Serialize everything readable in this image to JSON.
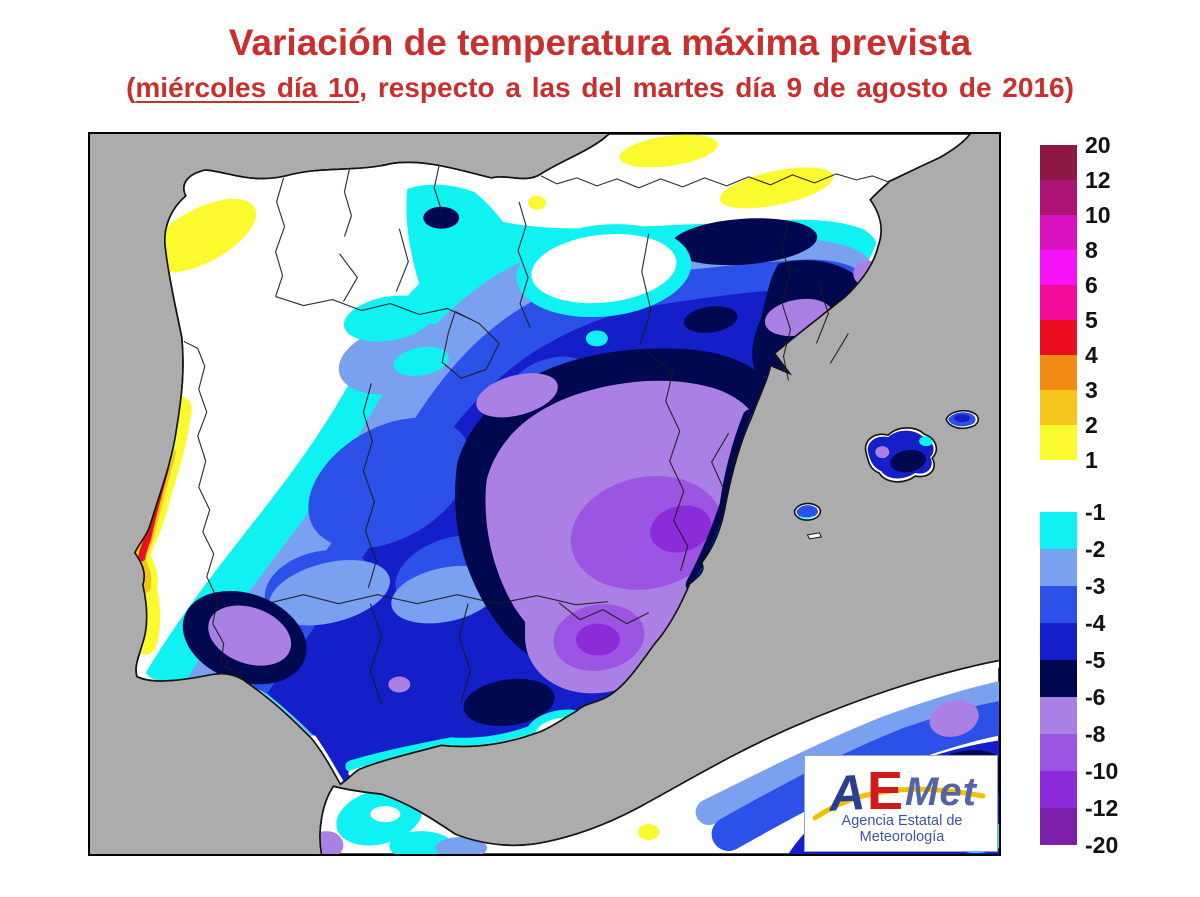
{
  "header": {
    "title": "Variación de temperatura máxima prevista",
    "subtitle_prefix": "(",
    "subtitle_underline": "miércoles día 10",
    "subtitle_rest": ", respecto a las del martes día 9 de agosto de 2016)",
    "text_color": "#c92f2c"
  },
  "map": {
    "sea_color": "#acacac",
    "land_color": "#ffffff",
    "coast_color": "#141414",
    "frame_color": "#000000"
  },
  "legend": {
    "units": "°C",
    "positive": {
      "labels": [
        "20",
        "12",
        "10",
        "8",
        "6",
        "5",
        "4",
        "3",
        "2",
        "1"
      ],
      "colors": [
        "#8f1945",
        "#ad1473",
        "#d912c0",
        "#f713f7",
        "#f30c9a",
        "#e90f20",
        "#f28a16",
        "#f4c51a",
        "#fafa2e"
      ]
    },
    "negative": {
      "labels": [
        "-1",
        "-2",
        "-3",
        "-4",
        "-5",
        "-6",
        "-8",
        "-10",
        "-12",
        "-20"
      ],
      "colors": [
        "#10f2f2",
        "#7aa0f0",
        "#2b51e8",
        "#141fc9",
        "#000850",
        "#ab80e4",
        "#9c55e2",
        "#8c2bd9",
        "#7b1fa9"
      ]
    }
  },
  "logo": {
    "word_a": "A",
    "word_e": "E",
    "word_met": "Met",
    "caption": "Agencia Estatal de Meteorología",
    "a_color": "#2a3f8f",
    "e_color": "#cf1b1b",
    "met_color": "#5563a8",
    "swoosh_color": "#f2c200",
    "caption_color": "#3b55a0"
  }
}
